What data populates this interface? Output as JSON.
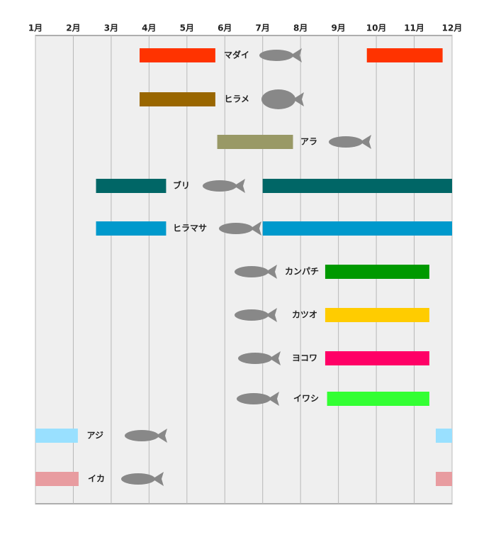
{
  "chart_data": {
    "type": "gantt",
    "xlim": [
      1,
      12
    ],
    "xticks": [
      {
        "value": 1,
        "label": "1月"
      },
      {
        "value": 2,
        "label": "2月"
      },
      {
        "value": 3,
        "label": "3月"
      },
      {
        "value": 4,
        "label": "4月"
      },
      {
        "value": 5,
        "label": "5月"
      },
      {
        "value": 6,
        "label": "6月"
      },
      {
        "value": 7,
        "label": "7月"
      },
      {
        "value": 8,
        "label": "8月"
      },
      {
        "value": 9,
        "label": "9月"
      },
      {
        "value": 10,
        "label": "10月"
      },
      {
        "value": 11,
        "label": "11月"
      },
      {
        "value": 12,
        "label": "12月"
      }
    ],
    "grid": true,
    "series": [
      {
        "name": "マダイ",
        "color": "#ff3300",
        "ranges": [
          [
            3.75,
            5.75
          ],
          [
            9.75,
            11.75
          ]
        ]
      },
      {
        "name": "ヒラメ",
        "color": "#996600",
        "ranges": [
          [
            3.75,
            5.75
          ]
        ]
      },
      {
        "name": "アラ",
        "color": "#999966",
        "ranges": [
          [
            5.8,
            7.8
          ]
        ]
      },
      {
        "name": "ブリ",
        "color": "#006666",
        "ranges": [
          [
            2.6,
            4.45
          ],
          [
            7,
            12
          ]
        ]
      },
      {
        "name": "ヒラマサ",
        "color": "#0099cc",
        "ranges": [
          [
            2.6,
            4.45
          ],
          [
            7,
            12
          ]
        ]
      },
      {
        "name": "カンパチ",
        "color": "#009900",
        "ranges": [
          [
            8.65,
            11.4
          ]
        ]
      },
      {
        "name": "カツオ",
        "color": "#ffcc00",
        "ranges": [
          [
            8.65,
            11.4
          ]
        ]
      },
      {
        "name": "ヨコワ",
        "color": "#ff0066",
        "ranges": [
          [
            8.65,
            11.4
          ]
        ]
      },
      {
        "name": "イワシ",
        "color": "#33ff33",
        "ranges": [
          [
            8.7,
            11.4
          ]
        ]
      },
      {
        "name": "アジ",
        "color": "#99e0ff",
        "ranges": [
          [
            1,
            2.12
          ],
          [
            11.57,
            12
          ]
        ]
      },
      {
        "name": "イカ",
        "color": "#e89ca0",
        "ranges": [
          [
            1,
            2.14
          ],
          [
            11.57,
            12
          ]
        ]
      }
    ]
  }
}
